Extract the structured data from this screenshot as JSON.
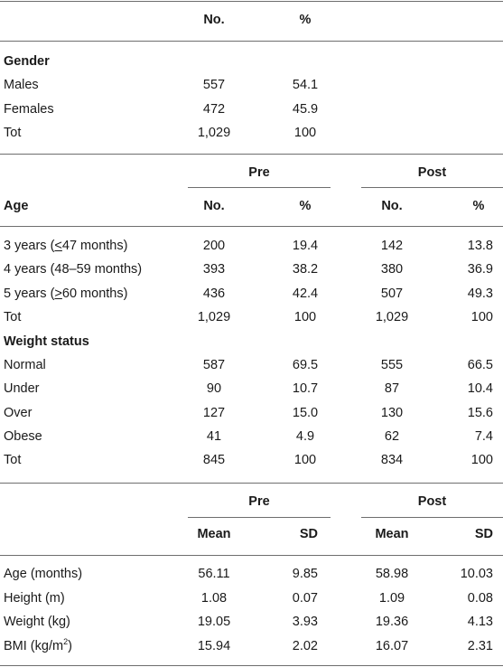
{
  "section1": {
    "header": {
      "no": "No.",
      "pct": "%"
    },
    "group_label": "Gender",
    "rows": [
      {
        "label": "Males",
        "no": "557",
        "pct": "54.1"
      },
      {
        "label": "Females",
        "no": "472",
        "pct": "45.9"
      },
      {
        "label": "Tot",
        "no": "1,029",
        "pct": "100"
      }
    ]
  },
  "section2": {
    "group_pre": "Pre",
    "group_post": "Post",
    "age_label": "Age",
    "header": {
      "no": "No.",
      "pct": "%"
    },
    "age_rows": [
      {
        "label": "3 years (<47 months)",
        "label_prefix": "3 years (",
        "label_sym": "<",
        "label_suffix": "47 months)",
        "pre_no": "200",
        "pre_pct": "19.4",
        "post_no": "142",
        "post_pct": "13.8"
      },
      {
        "label": "4 years (48–59 months)",
        "pre_no": "393",
        "pre_pct": "38.2",
        "post_no": "380",
        "post_pct": "36.9"
      },
      {
        "label": "5 years (>60 months)",
        "label_prefix": "5 years (",
        "label_sym": ">",
        "label_suffix": "60 months)",
        "pre_no": "436",
        "pre_pct": "42.4",
        "post_no": "507",
        "post_pct": "49.3"
      },
      {
        "label": "Tot",
        "pre_no": "1,029",
        "pre_pct": "100",
        "post_no": "1,029",
        "post_pct": "100"
      }
    ],
    "weight_label": "Weight status",
    "weight_rows": [
      {
        "label": "Normal",
        "pre_no": "587",
        "pre_pct": "69.5",
        "post_no": "555",
        "post_pct": "66.5"
      },
      {
        "label": "Under",
        "pre_no": "90",
        "pre_pct": "10.7",
        "post_no": "87",
        "post_pct": "10.4"
      },
      {
        "label": "Over",
        "pre_no": "127",
        "pre_pct": "15.0",
        "post_no": "130",
        "post_pct": "15.6"
      },
      {
        "label": "Obese",
        "pre_no": "41",
        "pre_pct": "4.9",
        "post_no": "62",
        "post_pct": "7.4"
      },
      {
        "label": "Tot",
        "pre_no": "845",
        "pre_pct": "100",
        "post_no": "834",
        "post_pct": "100"
      }
    ]
  },
  "section3": {
    "group_pre": "Pre",
    "group_post": "Post",
    "header": {
      "mean": "Mean",
      "sd": "SD"
    },
    "rows": [
      {
        "label": "Age (months)",
        "pre_mean": "56.11",
        "pre_sd": "9.85",
        "post_mean": "58.98",
        "post_sd": "10.03"
      },
      {
        "label": "Height (m)",
        "pre_mean": "1.08",
        "pre_sd": "0.07",
        "post_mean": "1.09",
        "post_sd": "0.08"
      },
      {
        "label": "Weight (kg)",
        "pre_mean": "19.05",
        "pre_sd": "3.93",
        "post_mean": "19.36",
        "post_sd": "4.13"
      },
      {
        "label": "BMI (kg/m2)",
        "label_base": "BMI (kg/m",
        "label_sup": "2",
        "label_end": ")",
        "pre_mean": "15.94",
        "pre_sd": "2.02",
        "post_mean": "16.07",
        "post_sd": "2.31"
      }
    ]
  }
}
